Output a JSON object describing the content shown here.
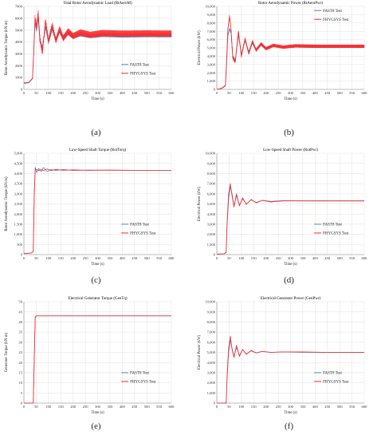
{
  "figure": {
    "colors": {
      "fast8": "#4f81bd",
      "fhygsys": "#ff2a2a",
      "grid": "#d9d9d9",
      "axis": "#8c8c8c"
    }
  },
  "chart_data": [
    {
      "id": "a",
      "type": "line",
      "title": "Total Rotor Aerodynamic Load (RtAeroM)",
      "xlabel": "Time (s)",
      "ylabel": "Rotor Aerodynamic Torque (kN·m)",
      "xlim": [
        0,
        600
      ],
      "ylim": [
        0,
        7000
      ],
      "xticks": [
        0,
        50,
        100,
        150,
        200,
        250,
        300,
        350,
        400,
        450,
        500,
        550,
        600
      ],
      "yticks": [
        0,
        1000,
        2000,
        3000,
        4000,
        5000,
        6000,
        7000
      ],
      "ytick_labels": [
        "0",
        "1000",
        "2000",
        "3000",
        "4000",
        "5000",
        "6000",
        "7000"
      ],
      "legend": "bottom-right",
      "grid": true,
      "series": [
        {
          "name": "FAST8 Test",
          "x": [
            0,
            20,
            35,
            40,
            45,
            52,
            58,
            65,
            75,
            88,
            100,
            115,
            130,
            145,
            160,
            180,
            200,
            230,
            270,
            320,
            400,
            500,
            600
          ],
          "y": [
            500,
            560,
            900,
            3000,
            5600,
            5000,
            6100,
            4100,
            3500,
            5300,
            4000,
            5100,
            4200,
            4900,
            4350,
            4750,
            4450,
            4650,
            4500,
            4600,
            4550,
            4580,
            4570
          ],
          "band": 180
        },
        {
          "name": "FHYGSYS Test",
          "x": [
            0,
            20,
            35,
            40,
            45,
            52,
            58,
            65,
            75,
            88,
            100,
            115,
            130,
            145,
            160,
            180,
            200,
            230,
            270,
            320,
            400,
            500,
            600
          ],
          "y": [
            550,
            600,
            950,
            3200,
            6000,
            5300,
            6500,
            4300,
            3100,
            5800,
            4100,
            5400,
            4100,
            5100,
            4300,
            4900,
            4500,
            4800,
            4600,
            4750,
            4700,
            4720,
            4700
          ],
          "band": 260
        }
      ]
    },
    {
      "id": "b",
      "type": "line",
      "title": "Rotor Aerodynamic Power (RtAeroPwr)",
      "xlabel": "Time (s)",
      "ylabel": "Electrical Power (kW)",
      "xlim": [
        0,
        600
      ],
      "ylim": [
        0,
        10000
      ],
      "xticks": [
        0,
        50,
        100,
        150,
        200,
        250,
        300,
        350,
        400,
        450,
        500,
        550,
        600
      ],
      "yticks": [
        0,
        1000,
        2000,
        3000,
        4000,
        5000,
        6000,
        7000,
        8000,
        9000,
        10000
      ],
      "ytick_labels": [
        "0",
        "1,000",
        "2,000",
        "3,000",
        "4,000",
        "5,000",
        "6,000",
        "7,000",
        "8,000",
        "9,000",
        "10,000"
      ],
      "legend": "top-right",
      "grid": true,
      "series": [
        {
          "name": "FAST8 Test",
          "x": [
            0,
            20,
            35,
            40,
            45,
            52,
            58,
            65,
            75,
            88,
            100,
            115,
            130,
            145,
            160,
            180,
            200,
            230,
            270,
            320,
            400,
            500,
            600
          ],
          "y": [
            0,
            100,
            400,
            3000,
            6500,
            7300,
            6800,
            4000,
            3500,
            6600,
            4200,
            5900,
            4500,
            5600,
            4800,
            5400,
            4950,
            5300,
            5050,
            5200,
            5150,
            5150,
            5150
          ],
          "band": 150
        },
        {
          "name": "FHYGSYS Test",
          "x": [
            0,
            20,
            35,
            40,
            45,
            52,
            58,
            65,
            75,
            88,
            100,
            115,
            130,
            145,
            160,
            180,
            200,
            230,
            270,
            320,
            400,
            500,
            600
          ],
          "y": [
            0,
            150,
            500,
            3500,
            7300,
            8800,
            7200,
            3800,
            3300,
            7000,
            4000,
            6100,
            4300,
            5800,
            4700,
            5500,
            4900,
            5300,
            5100,
            5250,
            5200,
            5200,
            5200
          ],
          "band": 200
        }
      ]
    },
    {
      "id": "c",
      "type": "line",
      "title": "Low-Speed Shaft Torque (RotTorq)",
      "xlabel": "Time (s)",
      "ylabel": "Rotor Aerodynamic Torque (kN·m)",
      "xlim": [
        0,
        600
      ],
      "ylim": [
        0,
        5000
      ],
      "xticks": [
        0,
        50,
        100,
        150,
        200,
        250,
        300,
        350,
        400,
        450,
        500,
        550,
        600
      ],
      "yticks": [
        0,
        500,
        1000,
        1500,
        2000,
        2500,
        3000,
        3500,
        4000,
        4500,
        5000
      ],
      "ytick_labels": [
        "0",
        "500",
        "1,000",
        "1,500",
        "2,000",
        "2,500",
        "3,000",
        "3,500",
        "4,000",
        "4,500",
        "5,000"
      ],
      "legend": "bottom-right",
      "grid": true,
      "series": [
        {
          "name": "FAST8 Test",
          "x": [
            0,
            30,
            38,
            42,
            46,
            52,
            60,
            70,
            80,
            95,
            110,
            130,
            160,
            200,
            260,
            350,
            450,
            600
          ],
          "y": [
            50,
            80,
            150,
            3000,
            4300,
            4050,
            4250,
            4100,
            4300,
            4100,
            4200,
            4150,
            4200,
            4150,
            4170,
            4160,
            4160,
            4160
          ],
          "band": 0
        },
        {
          "name": "FHYGSYS Test",
          "x": [
            0,
            30,
            38,
            42,
            46,
            52,
            60,
            70,
            80,
            95,
            110,
            130,
            160,
            200,
            260,
            350,
            450,
            600
          ],
          "y": [
            50,
            80,
            150,
            2800,
            4200,
            4200,
            4150,
            4200,
            4150,
            4220,
            4150,
            4200,
            4160,
            4180,
            4160,
            4170,
            4160,
            4160
          ],
          "band": 0
        }
      ]
    },
    {
      "id": "d",
      "type": "line",
      "title": "Low-Speed Shaft Power (RotPwr)",
      "xlabel": "Time (s)",
      "ylabel": "Electrical Power (kW)",
      "xlim": [
        0,
        600
      ],
      "ylim": [
        0,
        10000
      ],
      "xticks": [
        0,
        50,
        100,
        150,
        200,
        250,
        300,
        350,
        400,
        450,
        500,
        550,
        600
      ],
      "yticks": [
        0,
        1000,
        2000,
        3000,
        4000,
        5000,
        6000,
        7000,
        8000,
        9000,
        10000
      ],
      "ytick_labels": [
        "0",
        "1,000",
        "2,000",
        "3,000",
        "4,000",
        "5,000",
        "6,000",
        "7,000",
        "8,000",
        "9,000",
        "10,000"
      ],
      "legend": "bottom-right",
      "grid": true,
      "series": [
        {
          "name": "FAST8 Test",
          "x": [
            0,
            30,
            38,
            42,
            48,
            55,
            62,
            70,
            80,
            92,
            105,
            120,
            140,
            160,
            185,
            220,
            270,
            350,
            450,
            600
          ],
          "y": [
            50,
            80,
            200,
            3000,
            5500,
            6700,
            6000,
            4800,
            5800,
            4900,
            5500,
            5000,
            5400,
            5150,
            5350,
            5250,
            5320,
            5300,
            5300,
            5300
          ],
          "band": 0
        },
        {
          "name": "FHYGSYS Test",
          "x": [
            0,
            30,
            38,
            42,
            48,
            55,
            62,
            70,
            80,
            92,
            105,
            120,
            140,
            160,
            185,
            220,
            270,
            350,
            450,
            600
          ],
          "y": [
            50,
            80,
            250,
            3300,
            6000,
            7000,
            5800,
            4700,
            6000,
            4800,
            5600,
            4950,
            5450,
            5100,
            5350,
            5200,
            5300,
            5300,
            5300,
            5300
          ],
          "band": 0
        }
      ]
    },
    {
      "id": "e",
      "type": "line",
      "title": "Electrical Generator Torque (GenTq)",
      "xlabel": "Time (s)",
      "ylabel": "Generator Torque (kN·m)",
      "xlim": [
        0,
        600
      ],
      "ylim": [
        0,
        50
      ],
      "xticks": [
        0,
        50,
        100,
        150,
        200,
        250,
        300,
        350,
        400,
        450,
        500,
        550,
        600
      ],
      "yticks": [
        0,
        5,
        10,
        15,
        20,
        25,
        30,
        35,
        40,
        45,
        50
      ],
      "ytick_labels": [
        "0",
        "5",
        "10",
        "15",
        "20",
        "25",
        "30",
        "35",
        "40",
        "45",
        "50"
      ],
      "legend": "bottom-right",
      "grid": true,
      "series": [
        {
          "name": "FAST8 Test",
          "x": [
            0,
            30,
            38,
            42,
            46,
            50,
            600
          ],
          "y": [
            0,
            0,
            0,
            20,
            42,
            43,
            43
          ],
          "band": 0
        },
        {
          "name": "FHYGSYS Test",
          "x": [
            0,
            30,
            38,
            42,
            46,
            50,
            600
          ],
          "y": [
            0,
            0,
            0,
            22,
            42.5,
            43,
            43
          ],
          "band": 0
        }
      ]
    },
    {
      "id": "f",
      "type": "line",
      "title": "Electrical Generator Power (GenPwr)",
      "xlabel": "Time (s)",
      "ylabel": "Electrical Power (kW)",
      "xlim": [
        0,
        600
      ],
      "ylim": [
        0,
        10000
      ],
      "xticks": [
        0,
        50,
        100,
        150,
        200,
        250,
        300,
        350,
        400,
        450,
        500,
        550,
        600
      ],
      "yticks": [
        0,
        1000,
        2000,
        3000,
        4000,
        5000,
        6000,
        7000,
        8000,
        9000,
        10000
      ],
      "ytick_labels": [
        "0",
        "1,000",
        "2,000",
        "3,000",
        "4,000",
        "5,000",
        "6,000",
        "7,000",
        "8,000",
        "9,000",
        "10,000"
      ],
      "legend": "bottom-right",
      "grid": true,
      "series": [
        {
          "name": "FAST8 Test",
          "x": [
            0,
            30,
            38,
            42,
            48,
            55,
            62,
            70,
            80,
            92,
            105,
            120,
            140,
            160,
            185,
            220,
            270,
            350,
            450,
            600
          ],
          "y": [
            0,
            0,
            0,
            2500,
            5000,
            6200,
            5400,
            4600,
            5500,
            4700,
            5250,
            4850,
            5150,
            4950,
            5100,
            5000,
            5050,
            5000,
            5000,
            5000
          ],
          "band": 0
        },
        {
          "name": "FHYGSYS Test",
          "x": [
            0,
            30,
            38,
            42,
            48,
            55,
            62,
            70,
            80,
            92,
            105,
            120,
            140,
            160,
            185,
            220,
            270,
            350,
            450,
            600
          ],
          "y": [
            0,
            0,
            0,
            2800,
            5400,
            6600,
            5300,
            4500,
            5700,
            4600,
            5300,
            4800,
            5200,
            4950,
            5100,
            5000,
            5050,
            5050,
            5000,
            5000
          ],
          "band": 0
        }
      ]
    }
  ],
  "captions": [
    "(a)",
    "(b)",
    "(c)",
    "(d)",
    "(e)",
    "(f)"
  ]
}
